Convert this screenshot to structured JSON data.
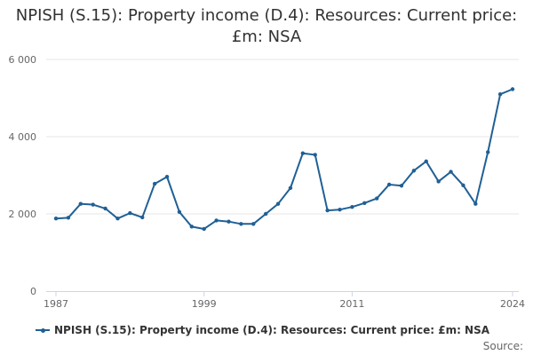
{
  "chart_data": {
    "type": "line",
    "title": "NPISH (S.15): Property income (D.4): Resources: Current price: £m: NSA",
    "xlabel": "",
    "ylabel": "",
    "x": [
      1987,
      1988,
      1989,
      1990,
      1991,
      1992,
      1993,
      1994,
      1995,
      1996,
      1997,
      1998,
      1999,
      2000,
      2001,
      2002,
      2003,
      2004,
      2005,
      2006,
      2007,
      2008,
      2009,
      2010,
      2011,
      2012,
      2013,
      2014,
      2015,
      2016,
      2017,
      2018,
      2019,
      2020,
      2021,
      2022,
      2023,
      2024
    ],
    "series": [
      {
        "name": "NPISH (S.15): Property income (D.4): Resources: Current price: £m: NSA",
        "color": "#206095",
        "values": [
          1880,
          1900,
          2260,
          2240,
          2140,
          1880,
          2020,
          1910,
          2780,
          2960,
          2050,
          1670,
          1610,
          1830,
          1800,
          1740,
          1740,
          2000,
          2260,
          2670,
          3570,
          3530,
          2090,
          2110,
          2180,
          2280,
          2400,
          2760,
          2730,
          3120,
          3360,
          2840,
          3090,
          2740,
          2260,
          3600,
          5100,
          5230
        ]
      }
    ],
    "xlim": [
      1987,
      2024
    ],
    "ylim": [
      0,
      6000
    ],
    "x_ticks": [
      1987,
      1999,
      2011,
      2024
    ],
    "x_tick_labels": [
      "1987",
      "1999",
      "2011",
      "2024"
    ],
    "y_ticks": [
      0,
      2000,
      4000,
      6000
    ],
    "y_tick_labels": [
      "0",
      "2 000",
      "4 000",
      "6 000"
    ],
    "grid": true,
    "legend_position": "bottom",
    "source_label": "Source:"
  }
}
